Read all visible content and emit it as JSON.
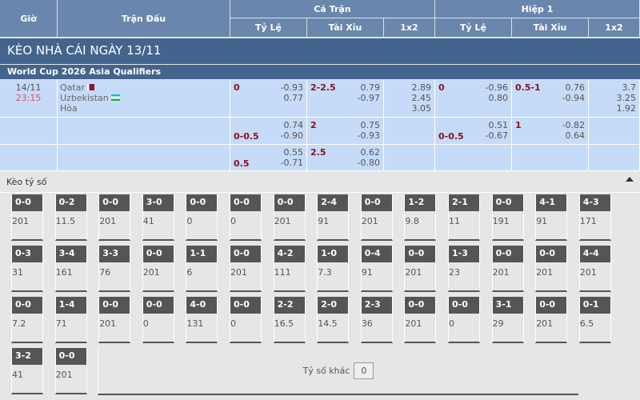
{
  "header": {
    "gio": "Giờ",
    "tran_dau": "Trận Đấu",
    "ca_tran": "Cả Trận",
    "hiep1": "Hiệp 1",
    "ty_le": "Tỷ Lệ",
    "tai_xiu": "Tài Xỉu",
    "x12": "1x2"
  },
  "title": "KÈO NHÀ CÁI NGÀY 13/11",
  "league": "World Cup 2026 Asia Qualifiers",
  "match": {
    "date": "14/11",
    "time": "23:15",
    "home": "Qatar",
    "away": "Uzbekistan",
    "draw": "Hòa"
  },
  "rows": [
    {
      "ft_hdp": "0",
      "ft_hdp_odds": [
        "-0.93",
        "0.77"
      ],
      "ft_ou": "2-2.5",
      "ft_ou_odds": [
        "0.79",
        "-0.97"
      ],
      "ft_1x2": [
        "2.89",
        "2.45",
        "3.05"
      ],
      "h1_hdp": "0",
      "h1_hdp_odds": [
        "-0.96",
        "0.80"
      ],
      "h1_ou": "0.5-1",
      "h1_ou_odds": [
        "0.76",
        "-0.94"
      ],
      "h1_1x2": [
        "3.7",
        "3.25",
        "1.92"
      ]
    },
    {
      "ft_hdp": "0-0.5",
      "ft_hdp_odds": [
        "0.74",
        "-0.90"
      ],
      "ft_ou": "2",
      "ft_ou_odds": [
        "0.75",
        "-0.93"
      ],
      "h1_hdp": "0-0.5",
      "h1_hdp_odds": [
        "0.51",
        "-0.67"
      ],
      "h1_ou": "1",
      "h1_ou_odds": [
        "-0.82",
        "0.64"
      ]
    },
    {
      "ft_hdp": "0.5",
      "ft_hdp_odds": [
        "0.55",
        "-0.71"
      ],
      "ft_ou": "2.5",
      "ft_ou_odds": [
        "0.62",
        "-0.80"
      ]
    }
  ],
  "correct_score": {
    "title": "Kèo tỷ số",
    "other_label": "Tỷ số khác",
    "other_value": "0",
    "items": [
      [
        "0-0",
        "201"
      ],
      [
        "0-2",
        "11.5"
      ],
      [
        "0-0",
        "201"
      ],
      [
        "3-0",
        "41"
      ],
      [
        "0-0",
        "0"
      ],
      [
        "0-0",
        "0"
      ],
      [
        "0-0",
        "201"
      ],
      [
        "2-4",
        "91"
      ],
      [
        "0-0",
        "201"
      ],
      [
        "1-2",
        "9.8"
      ],
      [
        "2-1",
        "11"
      ],
      [
        "0-0",
        "191"
      ],
      [
        "4-1",
        "91"
      ],
      [
        "4-3",
        "171"
      ],
      [
        "0-3",
        "31"
      ],
      [
        "3-4",
        "161"
      ],
      [
        "3-3",
        "76"
      ],
      [
        "0-0",
        "201"
      ],
      [
        "1-1",
        "6"
      ],
      [
        "0-0",
        "201"
      ],
      [
        "4-2",
        "111"
      ],
      [
        "1-0",
        "7.3"
      ],
      [
        "0-4",
        "91"
      ],
      [
        "0-0",
        "201"
      ],
      [
        "1-3",
        "23"
      ],
      [
        "0-0",
        "201"
      ],
      [
        "0-0",
        "201"
      ],
      [
        "4-4",
        "201"
      ],
      [
        "0-0",
        "7.2"
      ],
      [
        "1-4",
        "71"
      ],
      [
        "0-0",
        "201"
      ],
      [
        "0-0",
        "0"
      ],
      [
        "4-0",
        "131"
      ],
      [
        "0-0",
        "0"
      ],
      [
        "2-2",
        "16.5"
      ],
      [
        "2-0",
        "14.5"
      ],
      [
        "2-3",
        "36"
      ],
      [
        "0-0",
        "201"
      ],
      [
        "0-0",
        "0"
      ],
      [
        "3-1",
        "29"
      ],
      [
        "0-0",
        "201"
      ],
      [
        "0-1",
        "6.5"
      ],
      [
        "3-2",
        "41"
      ],
      [
        "0-0",
        "201"
      ]
    ]
  }
}
